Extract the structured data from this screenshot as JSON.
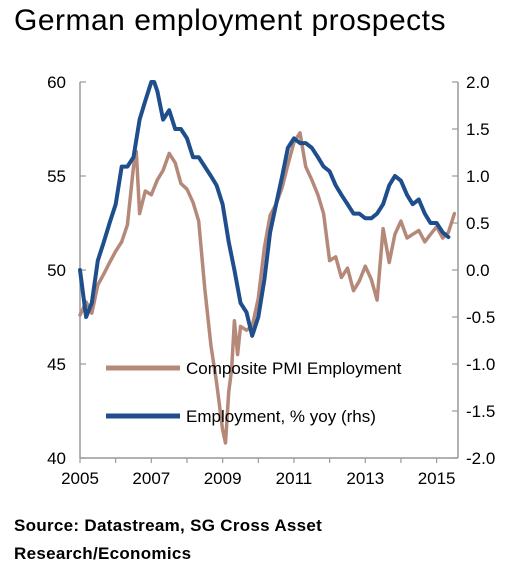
{
  "title": "German employment prospects",
  "source": "Source: Datastream, SG Cross Asset Research/Economics",
  "colors": {
    "pmi": "#b5897a",
    "employment": "#1f4e8c",
    "axis": "#999999"
  },
  "chart_data": {
    "type": "line",
    "title": "German employment prospects",
    "xlabel": "",
    "ylabel": "",
    "y2label": "",
    "xlim": [
      2005,
      2015.6
    ],
    "ylim": [
      40,
      60
    ],
    "y2lim": [
      -2.0,
      2.0
    ],
    "x_ticks": [
      2005,
      2007,
      2009,
      2011,
      2013,
      2015
    ],
    "x_tick_labels": [
      "2005",
      "2007",
      "2009",
      "2011",
      "2013",
      "2015"
    ],
    "y_ticks": [
      40,
      45,
      50,
      55,
      60
    ],
    "y_tick_labels": [
      "40",
      "45",
      "50",
      "55",
      "60"
    ],
    "y2_ticks": [
      -2.0,
      -1.5,
      -1.0,
      -0.5,
      0.0,
      0.5,
      1.0,
      1.5,
      2.0
    ],
    "y2_tick_labels": [
      "-2.0",
      "-1.5",
      "-1.0",
      "-0.5",
      "0.0",
      "0.5",
      "1.0",
      "1.5",
      "2.0"
    ],
    "grid": false,
    "legend_position": "bottom-center",
    "series": [
      {
        "name": "Composite PMI Employment",
        "axis": "left",
        "x": [
          2005.0,
          2005.17,
          2005.33,
          2005.5,
          2005.67,
          2005.83,
          2006.0,
          2006.17,
          2006.33,
          2006.5,
          2006.58,
          2006.67,
          2006.83,
          2007.0,
          2007.17,
          2007.33,
          2007.5,
          2007.67,
          2007.83,
          2008.0,
          2008.17,
          2008.33,
          2008.5,
          2008.67,
          2008.83,
          2009.0,
          2009.08,
          2009.17,
          2009.25,
          2009.33,
          2009.42,
          2009.5,
          2009.67,
          2009.83,
          2010.0,
          2010.17,
          2010.33,
          2010.5,
          2010.67,
          2010.83,
          2011.0,
          2011.17,
          2011.33,
          2011.5,
          2011.67,
          2011.83,
          2012.0,
          2012.17,
          2012.33,
          2012.5,
          2012.67,
          2012.83,
          2013.0,
          2013.17,
          2013.33,
          2013.5,
          2013.67,
          2013.83,
          2014.0,
          2014.17,
          2014.33,
          2014.5,
          2014.67,
          2014.83,
          2015.0,
          2015.17,
          2015.33,
          2015.5
        ],
        "values": [
          47.6,
          48.3,
          47.7,
          49.2,
          49.8,
          50.4,
          51.0,
          51.5,
          52.4,
          55.5,
          56.3,
          53.0,
          54.2,
          54.0,
          54.8,
          55.3,
          56.2,
          55.7,
          54.6,
          54.3,
          53.6,
          52.6,
          49.0,
          46.0,
          44.0,
          41.5,
          40.8,
          43.5,
          44.7,
          47.3,
          45.5,
          47.0,
          46.8,
          47.0,
          48.5,
          51.2,
          52.9,
          53.5,
          54.4,
          55.6,
          56.8,
          57.3,
          55.5,
          54.8,
          54.0,
          53.0,
          50.5,
          50.7,
          49.6,
          50.1,
          48.9,
          49.4,
          50.2,
          49.5,
          48.4,
          52.2,
          50.4,
          51.9,
          52.6,
          51.7,
          51.9,
          52.1,
          51.5,
          51.9,
          52.3,
          51.7,
          52.0,
          53.0
        ]
      },
      {
        "name": "Employment, % yoy (rhs)",
        "axis": "right",
        "x": [
          2005.0,
          2005.17,
          2005.33,
          2005.5,
          2005.67,
          2005.83,
          2006.0,
          2006.17,
          2006.33,
          2006.5,
          2006.67,
          2006.83,
          2007.0,
          2007.08,
          2007.17,
          2007.33,
          2007.5,
          2007.67,
          2007.83,
          2008.0,
          2008.17,
          2008.33,
          2008.5,
          2008.67,
          2008.83,
          2009.0,
          2009.17,
          2009.33,
          2009.5,
          2009.67,
          2009.83,
          2010.0,
          2010.17,
          2010.33,
          2010.5,
          2010.67,
          2010.83,
          2011.0,
          2011.17,
          2011.33,
          2011.5,
          2011.67,
          2011.83,
          2012.0,
          2012.17,
          2012.33,
          2012.5,
          2012.67,
          2012.83,
          2013.0,
          2013.17,
          2013.33,
          2013.5,
          2013.67,
          2013.83,
          2014.0,
          2014.17,
          2014.33,
          2014.5,
          2014.67,
          2014.83,
          2015.0,
          2015.17,
          2015.33
        ],
        "values": [
          0.0,
          -0.5,
          -0.35,
          0.1,
          0.3,
          0.5,
          0.7,
          1.1,
          1.1,
          1.2,
          1.6,
          1.8,
          2.0,
          2.0,
          1.9,
          1.6,
          1.7,
          1.5,
          1.5,
          1.4,
          1.2,
          1.2,
          1.1,
          1.0,
          0.9,
          0.7,
          0.3,
          0.0,
          -0.35,
          -0.45,
          -0.7,
          -0.5,
          -0.1,
          0.4,
          0.7,
          1.0,
          1.3,
          1.4,
          1.35,
          1.35,
          1.3,
          1.2,
          1.1,
          1.05,
          0.9,
          0.8,
          0.7,
          0.6,
          0.6,
          0.55,
          0.55,
          0.6,
          0.7,
          0.9,
          1.0,
          0.95,
          0.8,
          0.7,
          0.75,
          0.6,
          0.5,
          0.5,
          0.4,
          0.35
        ]
      }
    ]
  }
}
